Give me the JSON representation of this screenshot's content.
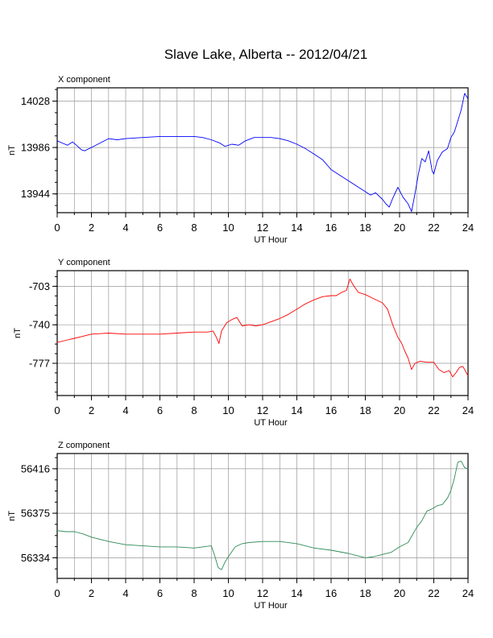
{
  "title": "Slave Lake, Alberta -- 2012/04/21",
  "chart_data": [
    {
      "type": "line",
      "title": "X component",
      "xlabel": "UT Hour",
      "ylabel": "nT",
      "xlim": [
        0,
        24
      ],
      "ylim": [
        13927,
        14040
      ],
      "xticks": [
        0,
        2,
        4,
        6,
        8,
        10,
        12,
        14,
        16,
        18,
        20,
        22,
        24
      ],
      "yticks": [
        13944,
        13986,
        14028
      ],
      "grid": true,
      "series": [
        {
          "color": "#0000ff",
          "x": [
            0,
            0.3,
            0.6,
            0.9,
            1.2,
            1.4,
            1.6,
            2.0,
            2.5,
            3.0,
            3.5,
            4.0,
            5.0,
            6.0,
            7.0,
            8.0,
            8.5,
            9.0,
            9.5,
            9.8,
            10.2,
            10.6,
            11.0,
            11.5,
            12.0,
            12.5,
            13.0,
            13.5,
            14.0,
            14.5,
            15.0,
            15.5,
            16.0,
            16.5,
            17.0,
            17.5,
            18.0,
            18.3,
            18.6,
            19.0,
            19.2,
            19.4,
            19.6,
            19.9,
            20.2,
            20.5,
            20.7,
            20.9,
            21.1,
            21.3,
            21.5,
            21.7,
            21.9,
            22.0,
            22.2,
            22.5,
            22.8,
            23.0,
            23.2,
            23.4,
            23.6,
            23.8,
            24.0
          ],
          "y": [
            13992,
            13990,
            13988,
            13991,
            13987,
            13984,
            13983,
            13986,
            13990,
            13994,
            13993,
            13994,
            13995,
            13996,
            13996,
            13996,
            13995,
            13993,
            13990,
            13987,
            13989,
            13988,
            13992,
            13995,
            13995,
            13995,
            13994,
            13992,
            13989,
            13985,
            13980,
            13975,
            13966,
            13961,
            13956,
            13951,
            13946,
            13943,
            13945,
            13939,
            13935,
            13932,
            13940,
            13950,
            13941,
            13935,
            13928,
            13944,
            13962,
            13976,
            13973,
            13983,
            13965,
            13962,
            13974,
            13982,
            13985,
            13995,
            14000,
            14010,
            14020,
            14035,
            14030
          ]
        }
      ]
    },
    {
      "type": "line",
      "title": "Y component",
      "xlabel": "UT Hour",
      "ylabel": "nT",
      "xlim": [
        0,
        24
      ],
      "ylim": [
        -808,
        -688
      ],
      "xticks": [
        0,
        2,
        4,
        6,
        8,
        10,
        12,
        14,
        16,
        18,
        20,
        22,
        24
      ],
      "yticks": [
        -777,
        -740,
        -703
      ],
      "grid": true,
      "series": [
        {
          "color": "#ff0000",
          "x": [
            0,
            0.5,
            1.0,
            1.5,
            2.0,
            3.0,
            4.0,
            5.0,
            6.0,
            7.0,
            8.0,
            8.8,
            9.1,
            9.3,
            9.45,
            9.6,
            9.9,
            10.2,
            10.5,
            10.8,
            11.2,
            11.6,
            12.0,
            12.5,
            13.0,
            13.5,
            14.0,
            14.5,
            15.0,
            15.5,
            16.0,
            16.3,
            16.6,
            16.9,
            17.1,
            17.3,
            17.6,
            18.0,
            18.5,
            19.0,
            19.3,
            19.6,
            19.9,
            20.1,
            20.3,
            20.5,
            20.7,
            20.9,
            21.2,
            21.6,
            22.0,
            22.3,
            22.6,
            22.9,
            23.1,
            23.3,
            23.5,
            23.7,
            24.0
          ],
          "y": [
            -757,
            -755,
            -753,
            -751,
            -749,
            -748,
            -749,
            -749,
            -749,
            -748,
            -747,
            -747,
            -746,
            -752,
            -758,
            -746,
            -738,
            -735,
            -733,
            -741,
            -740,
            -741,
            -740,
            -737,
            -734,
            -730,
            -725,
            -720,
            -716,
            -713,
            -712,
            -712,
            -709,
            -707,
            -696,
            -702,
            -709,
            -711,
            -715,
            -719,
            -725,
            -740,
            -752,
            -757,
            -765,
            -772,
            -783,
            -777,
            -775,
            -776,
            -776,
            -783,
            -786,
            -784,
            -790,
            -786,
            -781,
            -780,
            -789
          ]
        }
      ]
    },
    {
      "type": "line",
      "title": "Z component",
      "xlabel": "UT Hour",
      "ylabel": "nT",
      "xlim": [
        0,
        24
      ],
      "ylim": [
        56315,
        56430
      ],
      "xticks": [
        0,
        2,
        4,
        6,
        8,
        10,
        12,
        14,
        16,
        18,
        20,
        22,
        24
      ],
      "yticks": [
        56334,
        56375,
        56416
      ],
      "grid": true,
      "series": [
        {
          "color": "#2e8b57",
          "x": [
            0,
            0.5,
            1.0,
            1.5,
            2.0,
            3.0,
            4.0,
            5.0,
            6.0,
            7.0,
            8.0,
            8.5,
            9.0,
            9.2,
            9.4,
            9.6,
            9.8,
            10.0,
            10.4,
            10.8,
            11.2,
            12.0,
            13.0,
            14.0,
            15.0,
            16.0,
            17.0,
            17.5,
            18.0,
            18.5,
            19.0,
            19.5,
            20.0,
            20.5,
            21.0,
            21.3,
            21.6,
            21.9,
            22.2,
            22.5,
            22.8,
            23.0,
            23.2,
            23.4,
            23.6,
            23.8,
            24.0
          ],
          "y": [
            56359,
            56358,
            56358,
            56356,
            56353,
            56349,
            56346,
            56345,
            56344,
            56344,
            56343,
            56344,
            56345,
            56336,
            56325,
            56323,
            56330,
            56335,
            56344,
            56347,
            56348,
            56349,
            56349,
            56347,
            56343,
            56341,
            56338,
            56336,
            56334,
            56335,
            56337,
            56339,
            56344,
            56348,
            56362,
            56368,
            56377,
            56379,
            56382,
            56383,
            56389,
            56396,
            56407,
            56422,
            56423,
            56417,
            56416
          ]
        }
      ]
    }
  ]
}
